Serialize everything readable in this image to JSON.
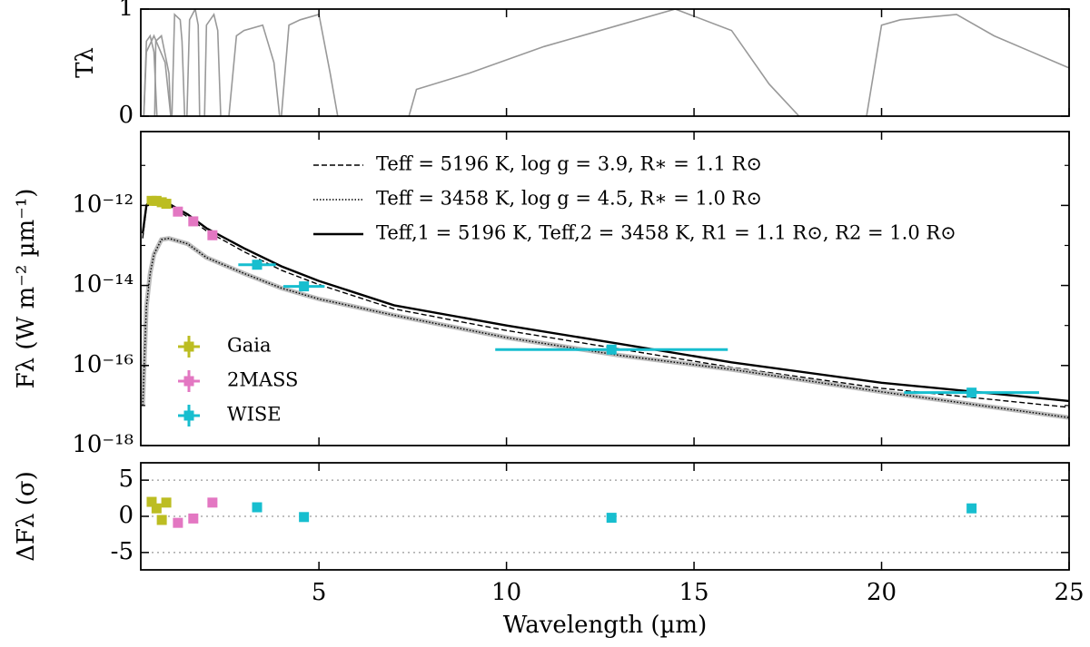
{
  "chart_data": [
    {
      "type": "transmission",
      "ylabel": "Tλ",
      "xlim": [
        0.25,
        25
      ],
      "xticks": [
        5,
        10,
        15,
        20,
        25
      ],
      "ylim": [
        0,
        1
      ],
      "yticks": [
        0,
        1
      ],
      "color": "#999999",
      "curves": [
        {
          "x": [
            0.33,
            0.4,
            0.5,
            0.6,
            0.68
          ],
          "values": [
            0,
            0.7,
            0.75,
            0.6,
            0
          ]
        },
        {
          "x": [
            0.33,
            0.4,
            0.6,
            0.9,
            1.05
          ],
          "values": [
            0,
            0.6,
            0.75,
            0.5,
            0
          ]
        },
        {
          "x": [
            0.62,
            0.65,
            0.8,
            1.0,
            1.05
          ],
          "values": [
            0,
            0.7,
            0.75,
            0.4,
            0
          ]
        },
        {
          "x": [
            1.08,
            1.15,
            1.3,
            1.35,
            1.42
          ],
          "values": [
            0,
            0.95,
            0.9,
            0.7,
            0
          ]
        },
        {
          "x": [
            1.48,
            1.55,
            1.7,
            1.78,
            1.82
          ],
          "values": [
            0,
            0.9,
            1,
            0.85,
            0
          ]
        },
        {
          "x": [
            1.95,
            2.0,
            2.2,
            2.3,
            2.38
          ],
          "values": [
            0,
            0.85,
            0.95,
            0.8,
            0
          ]
        },
        {
          "x": [
            2.6,
            2.8,
            3.0,
            3.5,
            3.8,
            3.95
          ],
          "values": [
            0,
            0.75,
            0.8,
            0.85,
            0.5,
            0
          ]
        },
        {
          "x": [
            4.0,
            4.2,
            4.5,
            5.0,
            5.3,
            5.5
          ],
          "values": [
            0,
            0.85,
            0.9,
            0.95,
            0.4,
            0
          ]
        },
        {
          "x": [
            7.4,
            7.6,
            9,
            11,
            13,
            14.5,
            16,
            17,
            17.8
          ],
          "values": [
            0,
            0.25,
            0.4,
            0.65,
            0.85,
            1.0,
            0.8,
            0.3,
            0
          ]
        },
        {
          "x": [
            19.6,
            20.0,
            20.5,
            22,
            23,
            24,
            25
          ],
          "values": [
            0,
            0.85,
            0.9,
            0.95,
            0.75,
            0.6,
            0.45
          ]
        }
      ]
    },
    {
      "type": "sed",
      "ylabel": "Fλ (W m⁻² µm⁻¹)",
      "log_y": true,
      "xlim": [
        0.25,
        25
      ],
      "xticks": [
        5,
        10,
        15,
        20,
        25
      ],
      "ylim": [
        1e-18,
        7e-11
      ],
      "yticks": [
        {
          "value": 1e-12,
          "label": "10⁻¹²"
        },
        {
          "value": 1e-14,
          "label": "10⁻¹⁴"
        },
        {
          "value": 1e-16,
          "label": "10⁻¹⁶"
        },
        {
          "value": 1e-18,
          "label": "10⁻¹⁸"
        }
      ],
      "yminor": [
        1e-11,
        1e-13,
        1e-15,
        1e-17
      ],
      "legend_models": "upper right",
      "legend_photometry": "lower left",
      "models": [
        {
          "name": "Teff = 5196 K, log g = 3.9, R∗ = 1.1 R⊙",
          "linestyle": "dashed",
          "color": "#000000",
          "x": [
            0.3,
            0.4,
            0.5,
            0.6,
            0.8,
            1,
            1.5,
            2,
            3,
            4,
            5,
            7,
            10,
            13,
            16,
            20,
            25
          ],
          "values": [
            1.5e-13,
            9e-13,
            1.3e-12,
            1.3e-12,
            1.2e-12,
            1e-12,
            5.2e-13,
            2.3e-13,
            7e-14,
            2.4e-14,
            1.05e-14,
            2.6e-15,
            7.5e-16,
            2.6e-16,
            9e-17,
            2.7e-17,
            9e-18
          ]
        },
        {
          "name": "Teff = 3458 K, log g = 4.5, R∗ = 1.0 R⊙",
          "linestyle": "dotted",
          "color": "#000000",
          "x": [
            0.3,
            0.4,
            0.5,
            0.6,
            0.8,
            1,
            1.5,
            2,
            3,
            4,
            5,
            7,
            10,
            13,
            16,
            20,
            25
          ],
          "values": [
            1e-17,
            3e-15,
            2e-14,
            6e-14,
            1.4e-13,
            1.5e-13,
            1.1e-13,
            5e-14,
            2e-14,
            8.6e-15,
            4.6e-15,
            1.8e-15,
            5e-16,
            1.8e-16,
            8e-17,
            2.2e-17,
            5e-18
          ]
        },
        {
          "name": "Teff,1 = 5196 K, Teff,2 = 3458 K, R1 = 1.1 R⊙, R2 = 1.0 R⊙",
          "linestyle": "solid",
          "color": "#000000",
          "x": [
            0.3,
            0.4,
            0.5,
            0.6,
            0.8,
            1,
            1.5,
            2,
            3,
            4,
            5,
            7,
            10,
            13,
            16,
            20,
            25
          ],
          "values": [
            2e-13,
            1e-12,
            1.4e-12,
            1.4e-12,
            1.3e-12,
            1.1e-12,
            6e-13,
            2.7e-13,
            8.5e-14,
            3e-14,
            1.3e-14,
            3.2e-15,
            1e-15,
            3.5e-16,
            1.2e-16,
            3.7e-17,
            1.3e-17
          ]
        }
      ],
      "photometry": [
        {
          "name": "Gaia",
          "color": "#bcbd22",
          "x": [
            0.54,
            0.67,
            0.81,
            0.93
          ],
          "values": [
            1.3e-12,
            1.3e-12,
            1.2e-12,
            1.1e-12
          ]
        },
        {
          "name": "2MASS",
          "color": "#e377c2",
          "x": [
            1.24,
            1.65,
            2.16
          ],
          "values": [
            7e-13,
            4e-13,
            1.8e-13
          ]
        },
        {
          "name": "WISE",
          "color": "#17becf",
          "x": [
            3.35,
            4.6,
            12.8,
            22.4
          ],
          "values": [
            3.3e-14,
            9.5e-15,
            2.5e-16,
            2.1e-17
          ],
          "xerr": [
            0.5,
            0.55,
            3.1,
            1.8
          ]
        }
      ]
    },
    {
      "type": "residual",
      "ylabel": "ΔFλ (σ)",
      "xlabel": "Wavelength (µm)",
      "xlim": [
        0.25,
        25
      ],
      "xticks": [
        5,
        10,
        15,
        20,
        25
      ],
      "ylim": [
        -7.4,
        7.4
      ],
      "yticks": [
        -5,
        0,
        5
      ],
      "grid": true,
      "series": [
        {
          "color": "#bcbd22",
          "x": [
            0.54,
            0.67,
            0.81,
            0.93
          ],
          "values": [
            2.0,
            1.1,
            -0.5,
            1.9
          ]
        },
        {
          "color": "#e377c2",
          "x": [
            1.24,
            1.65,
            2.16
          ],
          "values": [
            -0.9,
            -0.3,
            1.9
          ]
        },
        {
          "color": "#17becf",
          "x": [
            3.35,
            4.6,
            12.8,
            22.4
          ],
          "values": [
            1.25,
            -0.1,
            -0.2,
            1.1
          ]
        }
      ]
    }
  ]
}
